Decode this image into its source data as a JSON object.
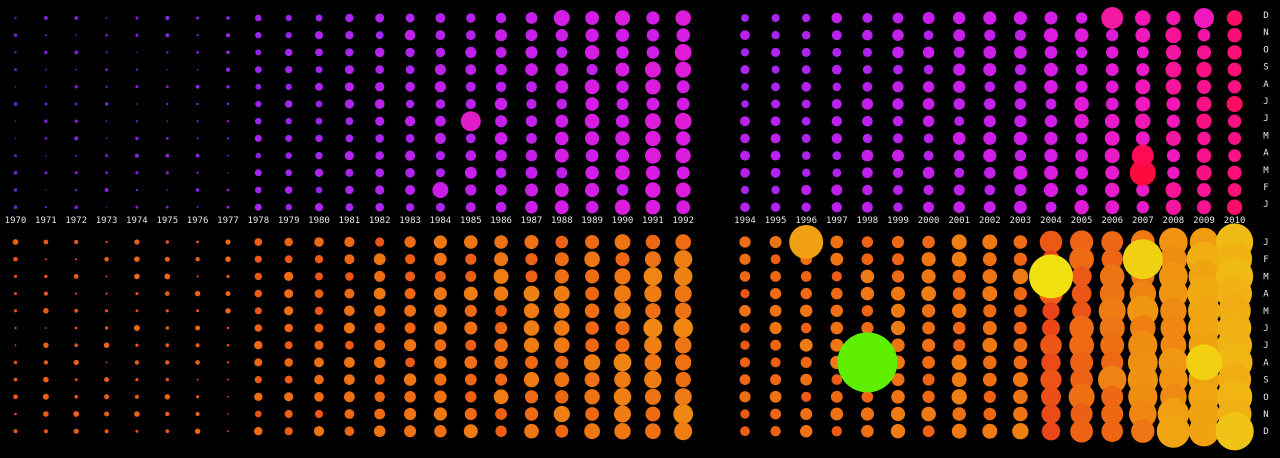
{
  "chart_data": {
    "type": "scatter",
    "title": "",
    "x_left": [
      1970,
      1971,
      1972,
      1973,
      1974,
      1975,
      1976,
      1977,
      1978,
      1979,
      1980,
      1981,
      1982,
      1983,
      1984,
      1985,
      1986,
      1987,
      1988,
      1989,
      1990,
      1991,
      1992
    ],
    "x_right": [
      1994,
      1995,
      1996,
      1997,
      1998,
      1999,
      2000,
      2001,
      2002,
      2003,
      2004,
      2005,
      2006,
      2007,
      2008,
      2009,
      2010
    ],
    "top_panel": {
      "row_labels_top_to_bottom": [
        "D",
        "N",
        "O",
        "S",
        "A",
        "J",
        "J",
        "M",
        "A",
        "M",
        "F",
        "J"
      ],
      "color_scale": [
        "#1a0a66",
        "#6a1ccc",
        "#a326f0",
        "#d21de8",
        "#f019c0",
        "#ff0a55"
      ]
    },
    "bottom_panel": {
      "row_labels_top_to_bottom": [
        "J",
        "F",
        "M",
        "A",
        "M",
        "J",
        "J",
        "A",
        "S",
        "O",
        "N",
        "D"
      ],
      "color_scale": [
        "#e8331a",
        "#ee6a14",
        "#f0a010",
        "#f0c416",
        "#f0e010"
      ],
      "outlier_color": "#5ef000"
    },
    "highlights_top": [
      {
        "year": 1985,
        "row": 6,
        "size": 10,
        "color": "#e01cc8"
      },
      {
        "year": 1988,
        "row": 0,
        "size": 8,
        "color": "#d21de8"
      },
      {
        "year": 1984,
        "row": 10,
        "size": 8,
        "color": "#c81ee8"
      },
      {
        "year": 2007,
        "row": 9,
        "size": 13,
        "color": "#ff0a3c"
      },
      {
        "year": 2007,
        "row": 8,
        "size": 11,
        "color": "#ff0a55"
      },
      {
        "year": 2006,
        "row": 0,
        "size": 11,
        "color": "#f019a0"
      },
      {
        "year": 2009,
        "row": 0,
        "size": 10,
        "color": "#f019c0"
      }
    ],
    "highlights_bottom": [
      {
        "year": 1998,
        "row": 7,
        "size": 30,
        "color": "#5ef000"
      },
      {
        "year": 1996,
        "row": 0,
        "size": 17,
        "color": "#f0a010"
      },
      {
        "year": 2004,
        "row": 2,
        "size": 22,
        "color": "#f0e010"
      },
      {
        "year": 2007,
        "row": 1,
        "size": 20,
        "color": "#f0d010"
      },
      {
        "year": 2010,
        "row": 11,
        "size": 19,
        "color": "#f0c416"
      },
      {
        "year": 2009,
        "row": 7,
        "size": 18,
        "color": "#f0d010"
      }
    ]
  }
}
